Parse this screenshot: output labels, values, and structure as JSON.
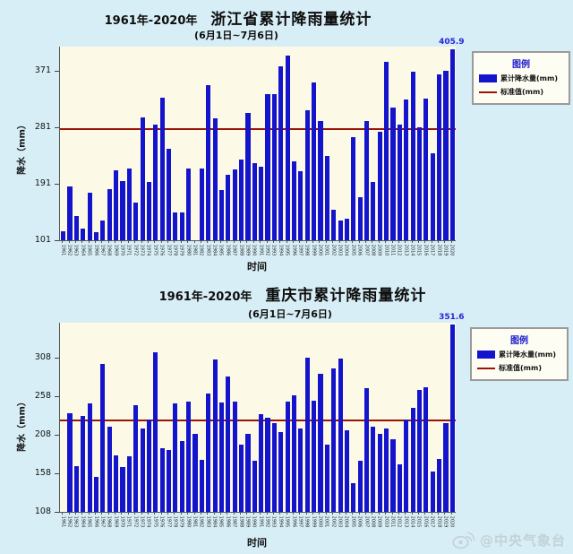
{
  "page": {
    "background": "#d7eef6"
  },
  "watermark": {
    "handle": "@中央气象台",
    "icon": "weibo-logo",
    "color": "#c3ced4"
  },
  "legend": {
    "title": "图例",
    "items": [
      {
        "label": "累计降水量(mm)",
        "type": "bar",
        "color": "#1414cd"
      },
      {
        "label": "标准值(mm)",
        "type": "line",
        "color": "#991407"
      }
    ]
  },
  "chart_data": [
    {
      "type": "bar",
      "title_prefix": "1961年-2020年",
      "title": "浙江省累计降雨量统计",
      "subtitle": "(6月1日~7月6日)",
      "xlabel": "时间",
      "ylabel": "降水（mm）",
      "ylim": [
        101,
        410
      ],
      "yticks": [
        101,
        191,
        281,
        371
      ],
      "standard_value": 278,
      "last_value_label": "405.9",
      "bar_color": "#1414cd",
      "line_color": "#991407",
      "plot_bg": "#fcf9e7",
      "legend_position": "right",
      "grid": false,
      "categories": [
        "1961",
        "1962",
        "1963",
        "1964",
        "1965",
        "1966",
        "1967",
        "1968",
        "1969",
        "1970",
        "1971",
        "1972",
        "1973",
        "1974",
        "1975",
        "1976",
        "1977",
        "1978",
        "1979",
        "1980",
        "1981",
        "1982",
        "1983",
        "1984",
        "1985",
        "1986",
        "1987",
        "1988",
        "1989",
        "1990",
        "1991",
        "1992",
        "1993",
        "1994",
        "1995",
        "1996",
        "1997",
        "1998",
        "1999",
        "2000",
        "2001",
        "2002",
        "2003",
        "2004",
        "2005",
        "2006",
        "2007",
        "2008",
        "2009",
        "2010",
        "2011",
        "2012",
        "2013",
        "2014",
        "2015",
        "2016",
        "2017",
        "2018",
        "2019",
        "2020"
      ],
      "values": [
        115,
        187,
        140,
        119,
        177,
        114,
        132,
        183,
        213,
        195,
        215,
        161,
        297,
        194,
        285,
        328,
        247,
        145,
        145,
        215,
        101,
        215,
        349,
        296,
        181,
        205,
        214,
        230,
        304,
        224,
        218,
        334,
        334,
        379,
        396,
        227,
        211,
        308,
        353,
        291,
        236,
        149,
        133,
        135,
        266,
        169,
        292,
        194,
        274,
        385,
        313,
        286,
        326,
        370,
        281,
        327,
        240,
        366,
        372,
        405.9
      ]
    },
    {
      "type": "bar",
      "title_prefix": "1961年-2020年",
      "title": "重庆市累计降雨量统计",
      "subtitle": "(6月1日~7月6日)",
      "xlabel": "时间",
      "ylabel": "降水（mm）",
      "ylim": [
        108,
        354
      ],
      "yticks": [
        108,
        158,
        208,
        258,
        308
      ],
      "standard_value": 227,
      "last_value_label": "351.6",
      "bar_color": "#1414cd",
      "line_color": "#991407",
      "plot_bg": "#fcf9e7",
      "legend_position": "right",
      "grid": false,
      "categories": [
        "1961",
        "1962",
        "1963",
        "1964",
        "1965",
        "1966",
        "1967",
        "1968",
        "1969",
        "1970",
        "1971",
        "1972",
        "1973",
        "1974",
        "1975",
        "1976",
        "1977",
        "1978",
        "1979",
        "1980",
        "1981",
        "1982",
        "1983",
        "1984",
        "1985",
        "1986",
        "1987",
        "1988",
        "1989",
        "1990",
        "1991",
        "1992",
        "1993",
        "1994",
        "1995",
        "1996",
        "1997",
        "1998",
        "1999",
        "2000",
        "2001",
        "2002",
        "2003",
        "2004",
        "2005",
        "2006",
        "2007",
        "2008",
        "2009",
        "2010",
        "2011",
        "2012",
        "2013",
        "2014",
        "2015",
        "2016",
        "2017",
        "2018",
        "2019",
        "2020"
      ],
      "values": [
        108,
        236,
        168,
        233,
        249,
        154,
        300,
        219,
        181,
        166,
        180,
        247,
        217,
        228,
        316,
        191,
        189,
        249,
        200,
        251,
        210,
        176,
        262,
        306,
        250,
        284,
        251,
        195,
        209,
        174,
        235,
        230,
        224,
        212,
        252,
        259,
        216,
        309,
        253,
        288,
        195,
        294,
        307,
        214,
        145,
        175,
        269,
        219,
        209,
        217,
        202,
        170,
        228,
        243,
        266,
        270,
        160,
        177,
        224,
        351.6
      ]
    }
  ]
}
